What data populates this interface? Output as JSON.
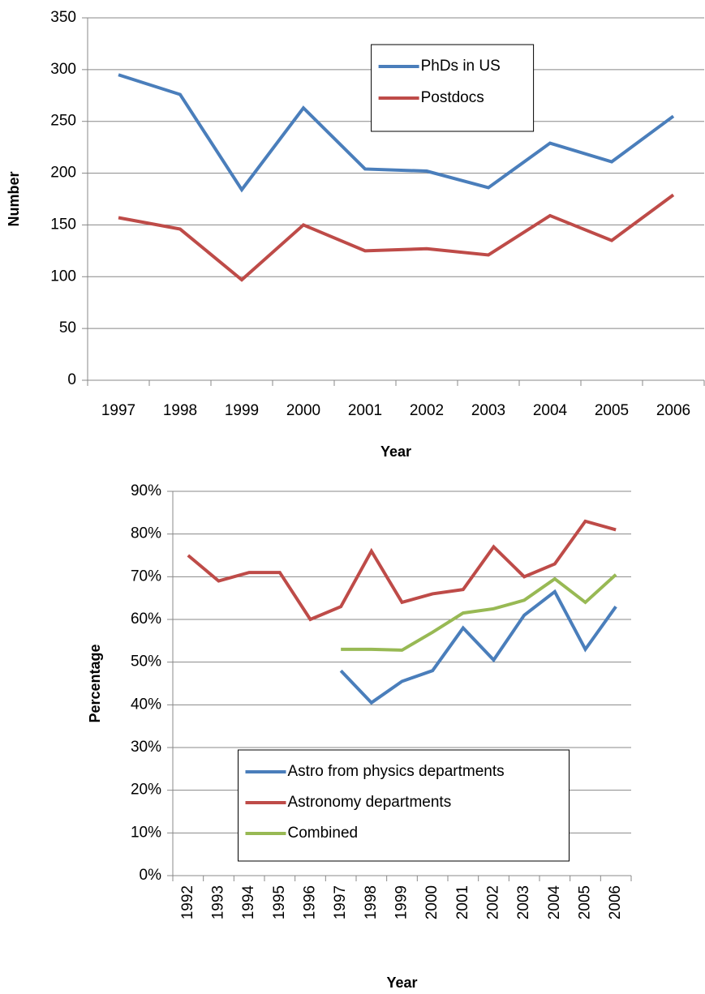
{
  "chart_data": [
    {
      "type": "line",
      "xlabel": "Year",
      "ylabel": "Number",
      "categories": [
        "1997",
        "1998",
        "1999",
        "2000",
        "2001",
        "2002",
        "2003",
        "2004",
        "2005",
        "2006"
      ],
      "series": [
        {
          "name": "PhDs in US",
          "color": "#4a7ebb",
          "values": [
            295,
            276,
            184,
            263,
            204,
            202,
            186,
            229,
            211,
            255
          ]
        },
        {
          "name": "Postdocs",
          "color": "#be4b48",
          "values": [
            157,
            146,
            97,
            150,
            125,
            127,
            121,
            159,
            135,
            179
          ]
        }
      ],
      "ylim": [
        0,
        350
      ],
      "yticks": [
        0,
        50,
        100,
        150,
        200,
        250,
        300,
        350
      ],
      "grid": true,
      "legend": "upper right"
    },
    {
      "type": "line",
      "xlabel": "Year",
      "ylabel": "Percentage",
      "categories": [
        "1992",
        "1993",
        "1994",
        "1995",
        "1996",
        "1997",
        "1998",
        "1999",
        "2000",
        "2001",
        "2002",
        "2003",
        "2004",
        "2005",
        "2006"
      ],
      "series": [
        {
          "name": "Astro from physics departments",
          "color": "#4a7ebb",
          "values": [
            null,
            null,
            null,
            null,
            null,
            48,
            40.5,
            45.5,
            48,
            58,
            50.5,
            61,
            66.5,
            53,
            63
          ]
        },
        {
          "name": "Astronomy departments",
          "color": "#be4b48",
          "values": [
            75,
            69,
            71,
            71,
            60,
            63,
            76,
            64,
            66,
            67,
            77,
            70,
            73,
            83,
            81
          ]
        },
        {
          "name": "Combined",
          "color": "#98b954",
          "values": [
            null,
            null,
            null,
            null,
            null,
            53,
            53,
            52.8,
            57,
            61.5,
            62.5,
            64.5,
            69.5,
            64,
            70.5
          ]
        }
      ],
      "ylim": [
        0,
        90
      ],
      "yticks": [
        {
          "value": 0,
          "label": "0%"
        },
        {
          "value": 10,
          "label": "10%"
        },
        {
          "value": 20,
          "label": "20%"
        },
        {
          "value": 30,
          "label": "30%"
        },
        {
          "value": 40,
          "label": "40%"
        },
        {
          "value": 50,
          "label": "50%"
        },
        {
          "value": 60,
          "label": "60%"
        },
        {
          "value": 70,
          "label": "70%"
        },
        {
          "value": 80,
          "label": "80%"
        },
        {
          "value": 90,
          "label": "90%"
        }
      ],
      "grid": true,
      "legend": "lower center"
    }
  ]
}
